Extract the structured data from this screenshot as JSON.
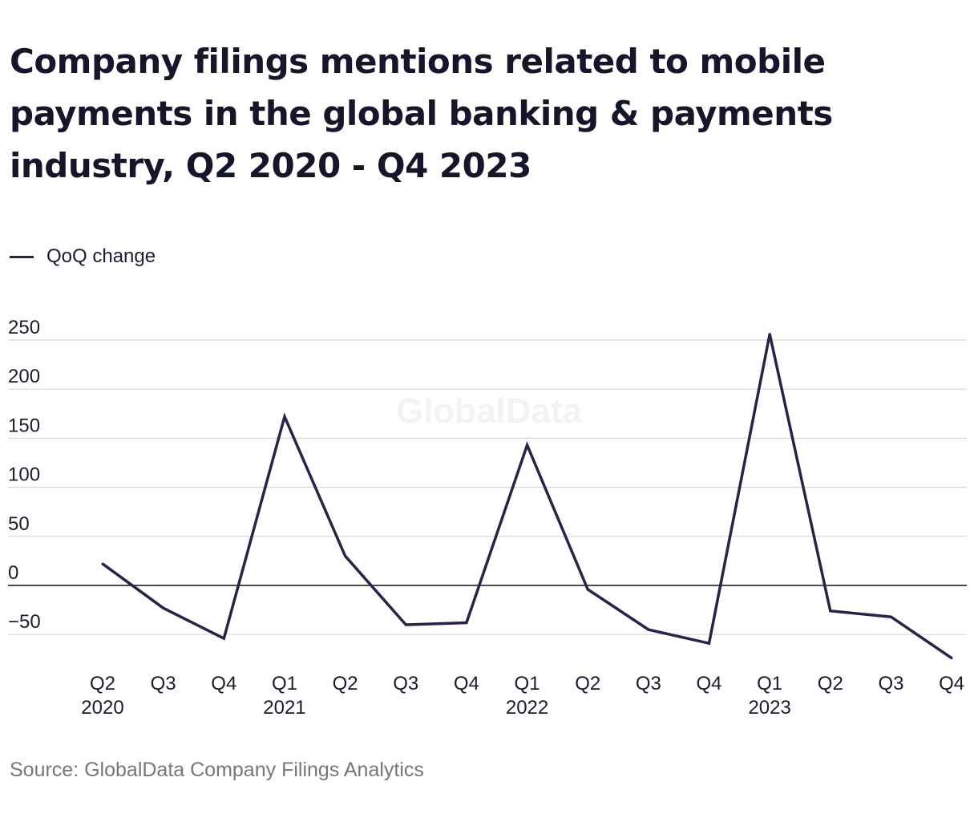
{
  "chart_data": {
    "type": "line",
    "title": "Company filings mentions related to mobile payments in the global banking & payments industry, Q2 2020 - Q4 2023",
    "categories": [
      "Q2 2020",
      "Q3 2020",
      "Q4 2020",
      "Q1 2021",
      "Q2 2021",
      "Q3 2021",
      "Q4 2021",
      "Q1 2022",
      "Q2 2022",
      "Q3 2022",
      "Q4 2022",
      "Q1 2023",
      "Q2 2023",
      "Q3 2023",
      "Q4 2023"
    ],
    "x_tick_labels": [
      {
        "quarter": "Q2",
        "year": "2020"
      },
      {
        "quarter": "Q3",
        "year": ""
      },
      {
        "quarter": "Q4",
        "year": ""
      },
      {
        "quarter": "Q1",
        "year": "2021"
      },
      {
        "quarter": "Q2",
        "year": ""
      },
      {
        "quarter": "Q3",
        "year": ""
      },
      {
        "quarter": "Q4",
        "year": ""
      },
      {
        "quarter": "Q1",
        "year": "2022"
      },
      {
        "quarter": "Q2",
        "year": ""
      },
      {
        "quarter": "Q3",
        "year": ""
      },
      {
        "quarter": "Q4",
        "year": ""
      },
      {
        "quarter": "Q1",
        "year": "2023"
      },
      {
        "quarter": "Q2",
        "year": ""
      },
      {
        "quarter": "Q3",
        "year": ""
      },
      {
        "quarter": "Q4",
        "year": ""
      }
    ],
    "series": [
      {
        "name": "QoQ change",
        "color": "#2e2148",
        "values": [
          22,
          -23,
          -54,
          172,
          30,
          -40,
          -38,
          143,
          -4,
          -45,
          -59,
          256,
          -26,
          -32,
          -74
        ]
      }
    ],
    "y_ticks": [
      "250",
      "200",
      "150",
      "100",
      "50",
      "0",
      "−50"
    ],
    "y_tick_values": [
      250,
      200,
      150,
      100,
      50,
      0,
      -50
    ],
    "ylim": [
      -75,
      260
    ],
    "grid": true,
    "legend_position": "top-left",
    "watermark": "GlobalData"
  },
  "source": "Source: GlobalData Company Filings Analytics",
  "colors": {
    "line": "#2e2148",
    "grid": "#d6d6d6",
    "zero_line": "#111111",
    "source_text": "#777777"
  }
}
